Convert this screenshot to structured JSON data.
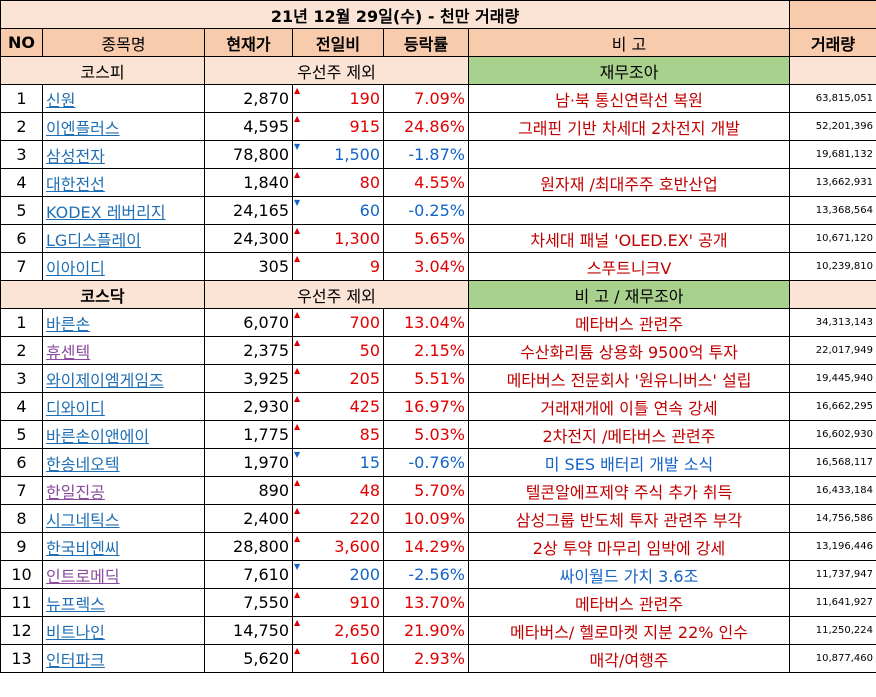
{
  "title": "21년 12월 29일(수) - 천만 거래량",
  "headers": [
    "NO",
    "종목명",
    "현재가",
    "전일비",
    "등락률",
    "비 고",
    "거래량"
  ],
  "kospi_section": {
    "market": "코스피",
    "filter": "우선주 제외",
    "note": "재무조아"
  },
  "kosdaq_section": {
    "market": "코스닥",
    "filter": "우선주 제외",
    "note": "비 고 / 재무조아"
  },
  "colors": {
    "up": "#e00000",
    "down": "#1463c8",
    "header_bg": "#f9cbad",
    "section_bg": "#fbe4d5",
    "note_bg": "#a9d18e"
  },
  "kospi": [
    {
      "no": "1",
      "name": "신원",
      "price": "2,870",
      "dir": "up",
      "chg": "190",
      "pct": "7.09%",
      "note": "남·북 통신연락선 복원",
      "vol": "63,815,051",
      "link": "blue"
    },
    {
      "no": "2",
      "name": "이엔플러스",
      "price": "4,595",
      "dir": "up",
      "chg": "915",
      "pct": "24.86%",
      "note": "그래핀 기반 차세대 2차전지 개발",
      "vol": "52,201,396",
      "link": "blue"
    },
    {
      "no": "3",
      "name": "삼성전자",
      "price": "78,800",
      "dir": "down",
      "chg": "1,500",
      "pct": "-1.87%",
      "note": "",
      "vol": "19,681,132",
      "link": "blue"
    },
    {
      "no": "4",
      "name": "대한전선",
      "price": "1,840",
      "dir": "up",
      "chg": "80",
      "pct": "4.55%",
      "note": "원자재 /최대주주 호반산업",
      "vol": "13,662,931",
      "link": "blue"
    },
    {
      "no": "5",
      "name": "KODEX 레버리지",
      "price": "24,165",
      "dir": "down",
      "chg": "60",
      "pct": "-0.25%",
      "note": "",
      "vol": "13,368,564",
      "link": "blue"
    },
    {
      "no": "6",
      "name": "LG디스플레이",
      "price": "24,300",
      "dir": "up",
      "chg": "1,300",
      "pct": "5.65%",
      "note": "차세대 패널 'OLED.EX' 공개",
      "vol": "10,671,120",
      "link": "blue"
    },
    {
      "no": "7",
      "name": "이아이디",
      "price": "305",
      "dir": "up",
      "chg": "9",
      "pct": "3.04%",
      "note": "스푸트니크V",
      "vol": "10,239,810",
      "link": "blue"
    }
  ],
  "kosdaq": [
    {
      "no": "1",
      "name": "바른손",
      "price": "6,070",
      "dir": "up",
      "chg": "700",
      "pct": "13.04%",
      "note": "메타버스 관련주",
      "vol": "34,313,143",
      "link": "blue"
    },
    {
      "no": "2",
      "name": "휴센텍",
      "price": "2,375",
      "dir": "up",
      "chg": "50",
      "pct": "2.15%",
      "note": "수산화리튬 상용화 9500억 투자",
      "vol": "22,017,949",
      "link": "purple"
    },
    {
      "no": "3",
      "name": "와이제이엠게임즈",
      "price": "3,925",
      "dir": "up",
      "chg": "205",
      "pct": "5.51%",
      "note": "메타버스 전문회사 '원유니버스' 설립",
      "vol": "19,445,940",
      "link": "blue"
    },
    {
      "no": "4",
      "name": "디와이디",
      "price": "2,930",
      "dir": "up",
      "chg": "425",
      "pct": "16.97%",
      "note": "거래재개에 이틀 연속 강세",
      "vol": "16,662,295",
      "link": "blue"
    },
    {
      "no": "5",
      "name": "바른손이앤에이",
      "price": "1,775",
      "dir": "up",
      "chg": "85",
      "pct": "5.03%",
      "note": "2차전지 /메타버스 관련주",
      "vol": "16,602,930",
      "link": "blue"
    },
    {
      "no": "6",
      "name": "한송네오텍",
      "price": "1,970",
      "dir": "down",
      "chg": "15",
      "pct": "-0.76%",
      "note": "미 SES 배터리 개발 소식",
      "vol": "16,568,117",
      "link": "blue"
    },
    {
      "no": "7",
      "name": "한일진공",
      "price": "890",
      "dir": "up",
      "chg": "48",
      "pct": "5.70%",
      "note": "텔콘알에프제약 주식 추가 취득",
      "vol": "16,433,184",
      "link": "purple"
    },
    {
      "no": "8",
      "name": "시그네틱스",
      "price": "2,400",
      "dir": "up",
      "chg": "220",
      "pct": "10.09%",
      "note": "삼성그룹 반도체 투자 관련주 부각",
      "vol": "14,756,586",
      "link": "blue"
    },
    {
      "no": "9",
      "name": "한국비엔씨",
      "price": "28,800",
      "dir": "up",
      "chg": "3,600",
      "pct": "14.29%",
      "note": "2상 투약 마무리 임박에 강세",
      "vol": "13,196,446",
      "link": "blue"
    },
    {
      "no": "10",
      "name": "인트로메딕",
      "price": "7,610",
      "dir": "down",
      "chg": "200",
      "pct": "-2.56%",
      "note": "싸이월드 가치 3.6조",
      "vol": "11,737,947",
      "link": "purple"
    },
    {
      "no": "11",
      "name": "뉴프렉스",
      "price": "7,550",
      "dir": "up",
      "chg": "910",
      "pct": "13.70%",
      "note": "메타버스 관련주",
      "vol": "11,641,927",
      "link": "blue"
    },
    {
      "no": "12",
      "name": "비트나인",
      "price": "14,750",
      "dir": "up",
      "chg": "2,650",
      "pct": "21.90%",
      "note": "메타버스/ 헬로마켓 지분 22% 인수",
      "vol": "11,250,224",
      "link": "blue"
    },
    {
      "no": "13",
      "name": "인터파크",
      "price": "5,620",
      "dir": "up",
      "chg": "160",
      "pct": "2.93%",
      "note": "매각/여행주",
      "vol": "10,877,460",
      "link": "blue"
    }
  ]
}
